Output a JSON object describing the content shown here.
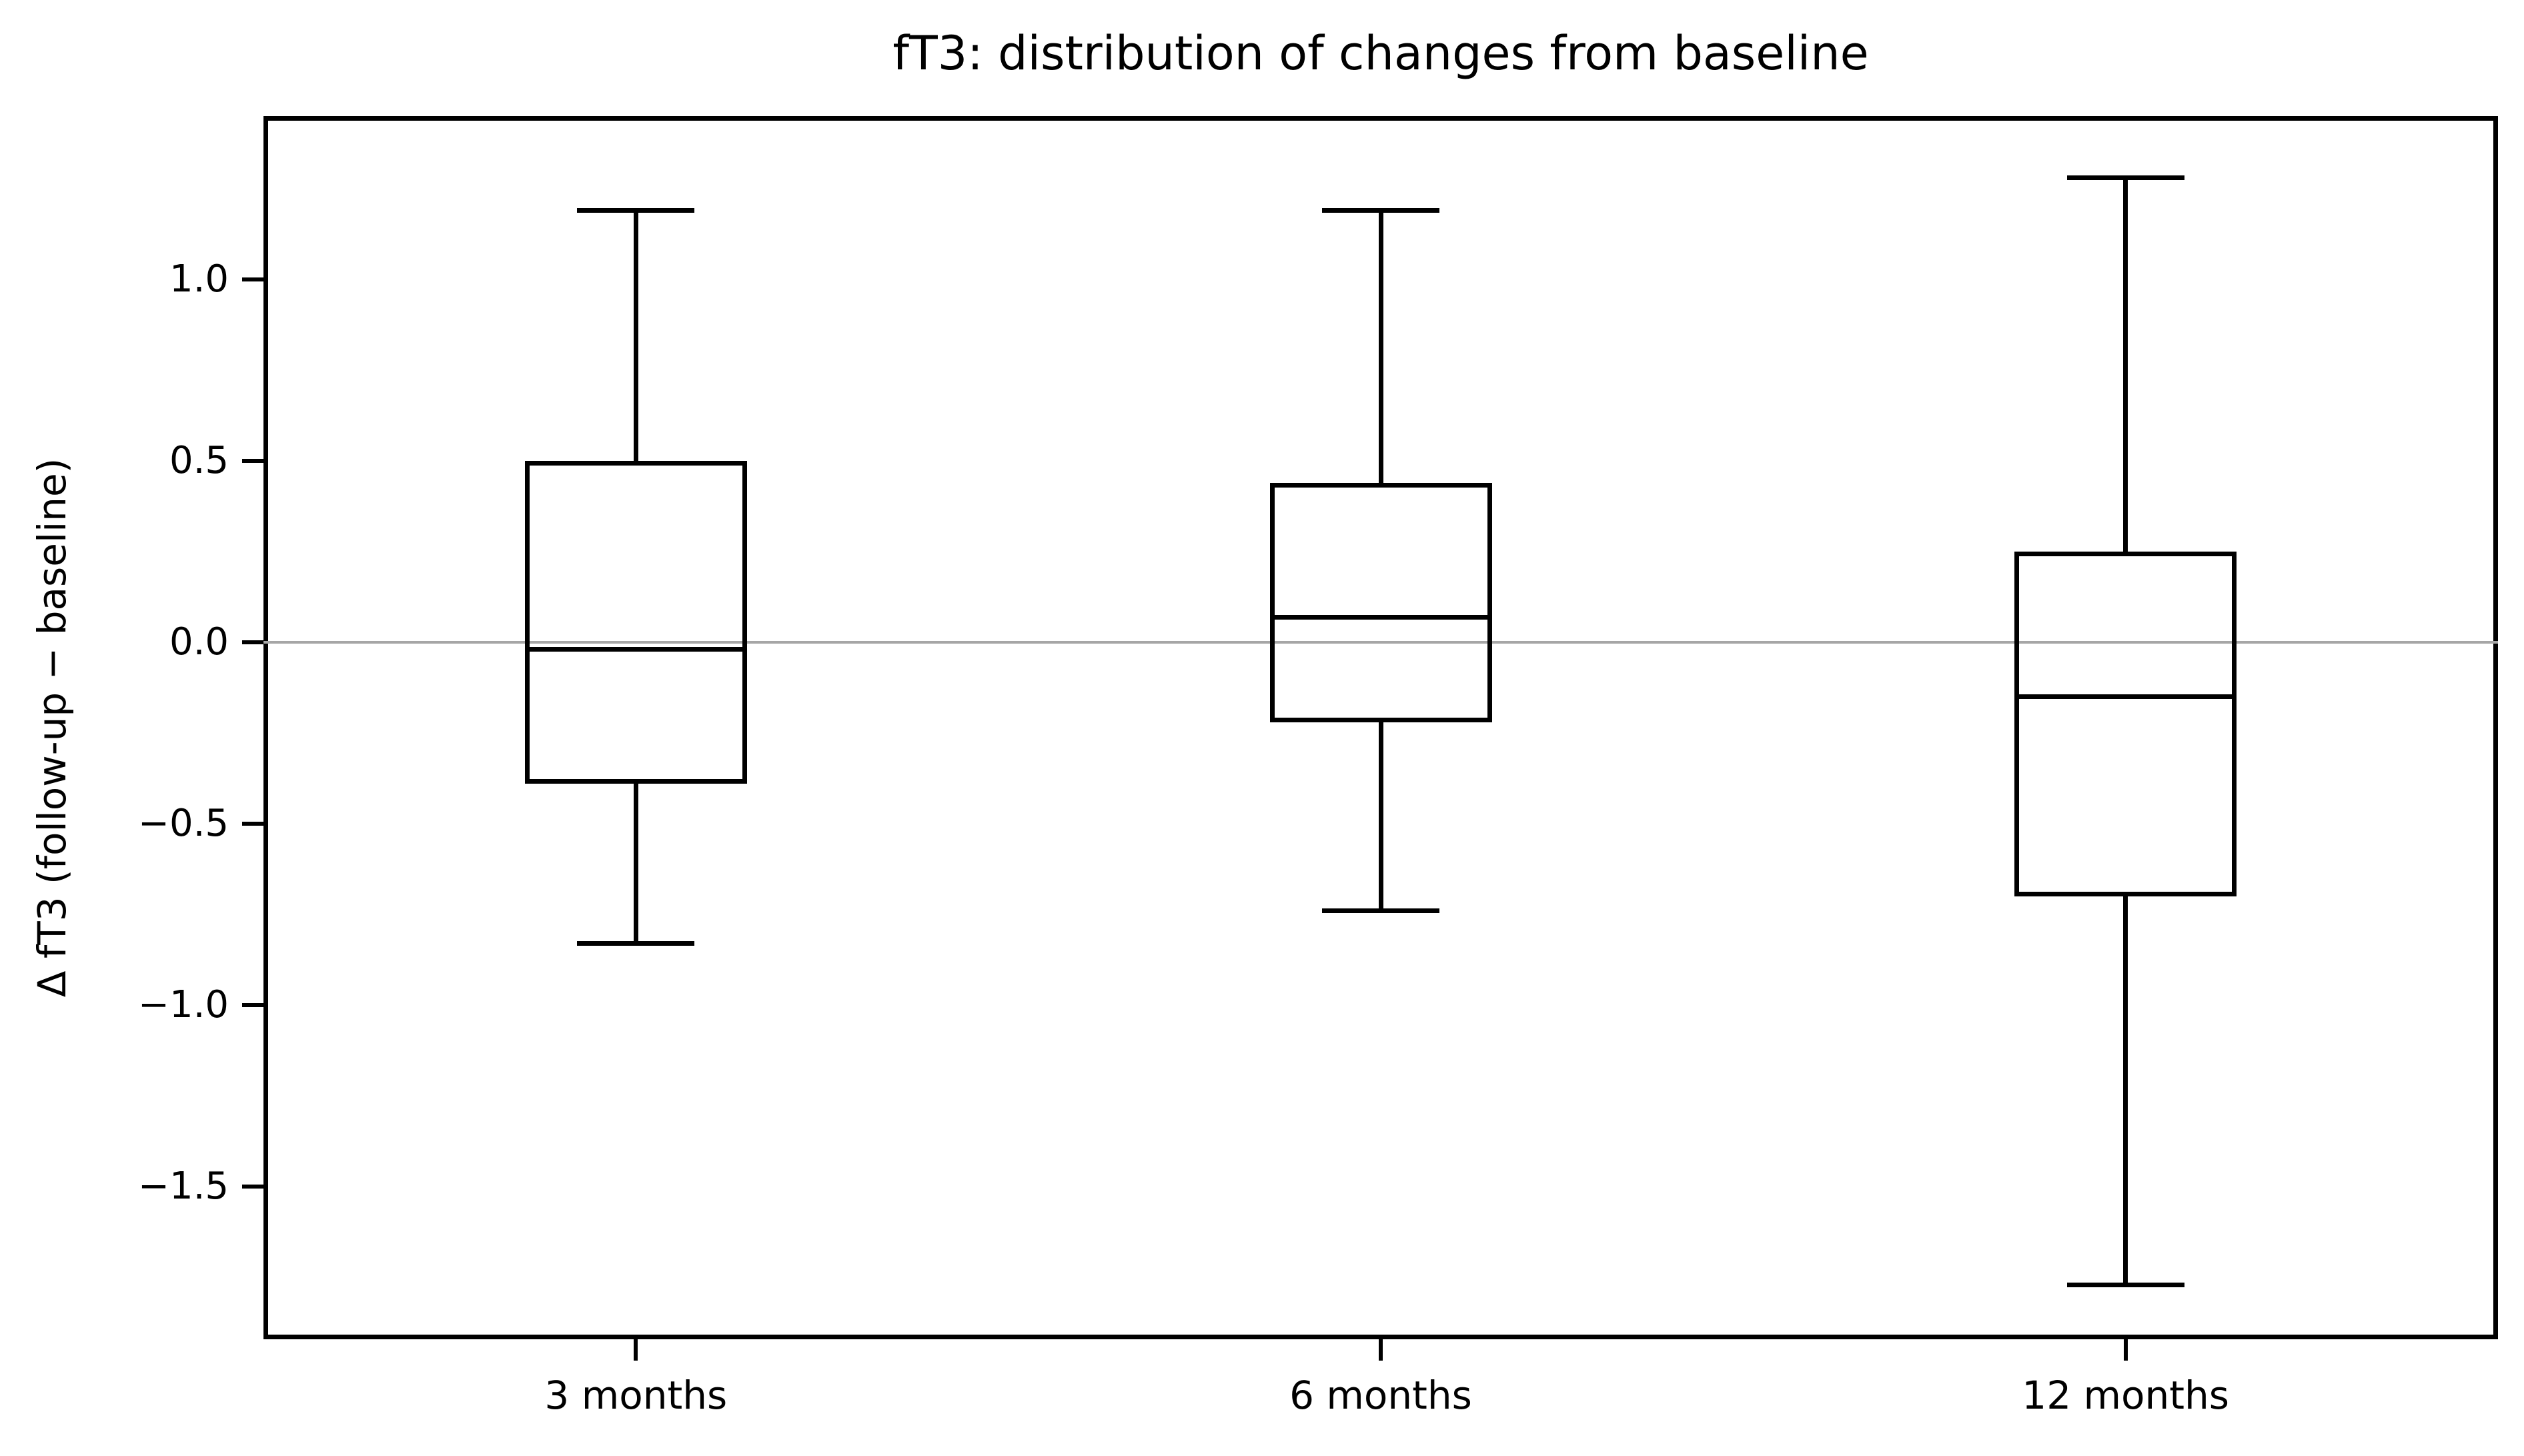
{
  "chart_data": {
    "type": "boxplot",
    "title": "fT3: distribution of changes from baseline",
    "ylabel": "Δ fT3 (follow-up − baseline)",
    "xlabel": "",
    "categories": [
      "3 months",
      "6 months",
      "12 months"
    ],
    "series": [
      {
        "name": "3 months",
        "whisker_low": -0.83,
        "q1": -0.39,
        "median": -0.02,
        "q3": 0.5,
        "whisker_high": 1.19
      },
      {
        "name": "6 months",
        "whisker_low": -0.74,
        "q1": -0.22,
        "median": 0.07,
        "q3": 0.44,
        "whisker_high": 1.19
      },
      {
        "name": "12 months",
        "whisker_low": -1.77,
        "q1": -0.7,
        "median": -0.15,
        "q3": 0.25,
        "whisker_high": 1.28
      }
    ],
    "yticks": [
      {
        "value": 1.0,
        "label": "1.0"
      },
      {
        "value": 0.5,
        "label": "0.5"
      },
      {
        "value": 0.0,
        "label": "0.0"
      },
      {
        "value": -0.5,
        "label": "−0.5"
      },
      {
        "value": -1.0,
        "label": "−1.0"
      },
      {
        "value": -1.5,
        "label": "−1.5"
      }
    ],
    "ylim": [
      -1.92,
      1.45
    ],
    "grid": false,
    "zero_line": true,
    "legend": null,
    "colors": {
      "box_line": "#000000",
      "zero_line": "#a6a6a6",
      "background": "#ffffff"
    }
  }
}
